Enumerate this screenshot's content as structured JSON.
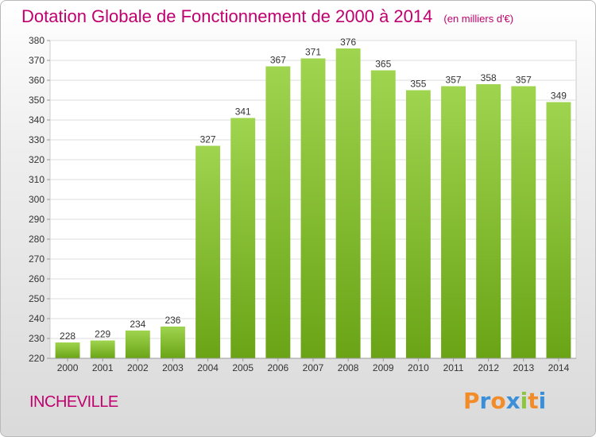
{
  "chart_data": {
    "type": "bar",
    "title": "Dotation Globale de Fonctionnement de 2000 à 2014",
    "subtitle": "(en milliers d'€)",
    "categories": [
      "2000",
      "2001",
      "2002",
      "2003",
      "2004",
      "2005",
      "2006",
      "2007",
      "2008",
      "2009",
      "2010",
      "2011",
      "2012",
      "2013",
      "2014"
    ],
    "values": [
      228,
      229,
      234,
      236,
      327,
      341,
      367,
      371,
      376,
      365,
      355,
      357,
      358,
      357,
      349
    ],
    "ylim": [
      220,
      380
    ],
    "yticks": [
      "220",
      "230",
      "240",
      "250",
      "260",
      "270",
      "280",
      "290",
      "300",
      "310",
      "320",
      "330",
      "340",
      "350",
      "360",
      "370",
      "380"
    ],
    "grid": true,
    "legend": "none",
    "bar_color": "#8cc63f"
  },
  "footer": {
    "commune": "INCHEVILLE",
    "brand": "Proxiti"
  },
  "colors": {
    "title": "#c0006e",
    "logo": [
      "#f28c28",
      "#3a8fd8",
      "#f28c28",
      "#3a8fd8",
      "#8cc63f",
      "#f28c28",
      "#3a8fd8"
    ]
  }
}
